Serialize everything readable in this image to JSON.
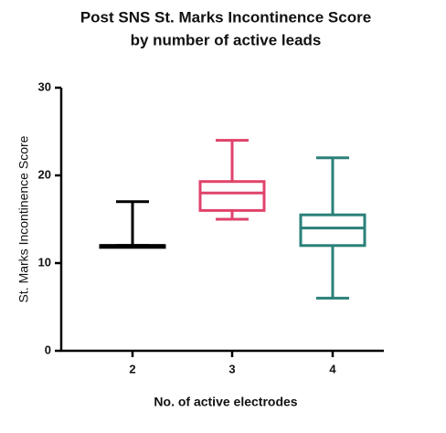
{
  "chart_data": {
    "type": "box",
    "title": [
      "Post SNS St. Marks Incontinence Score",
      "by number of active leads"
    ],
    "x_label": "No. of active electrodes",
    "y_label": "St. Marks  Incontinence Score",
    "categories": [
      "2",
      "3",
      "4"
    ],
    "boxes": [
      {
        "min": 12,
        "q1": 12,
        "median": 12,
        "q3": 12,
        "max": 17,
        "color": "#000000"
      },
      {
        "min": 15,
        "q1": 16,
        "median": 18,
        "q3": 19.3,
        "max": 24,
        "color": "#e0436b"
      },
      {
        "min": 6,
        "q1": 12,
        "median": 14,
        "q3": 15.5,
        "max": 22,
        "color": "#2a8079"
      }
    ],
    "ylim": [
      0,
      30
    ],
    "yticks": [
      0,
      10,
      20,
      30
    ]
  }
}
